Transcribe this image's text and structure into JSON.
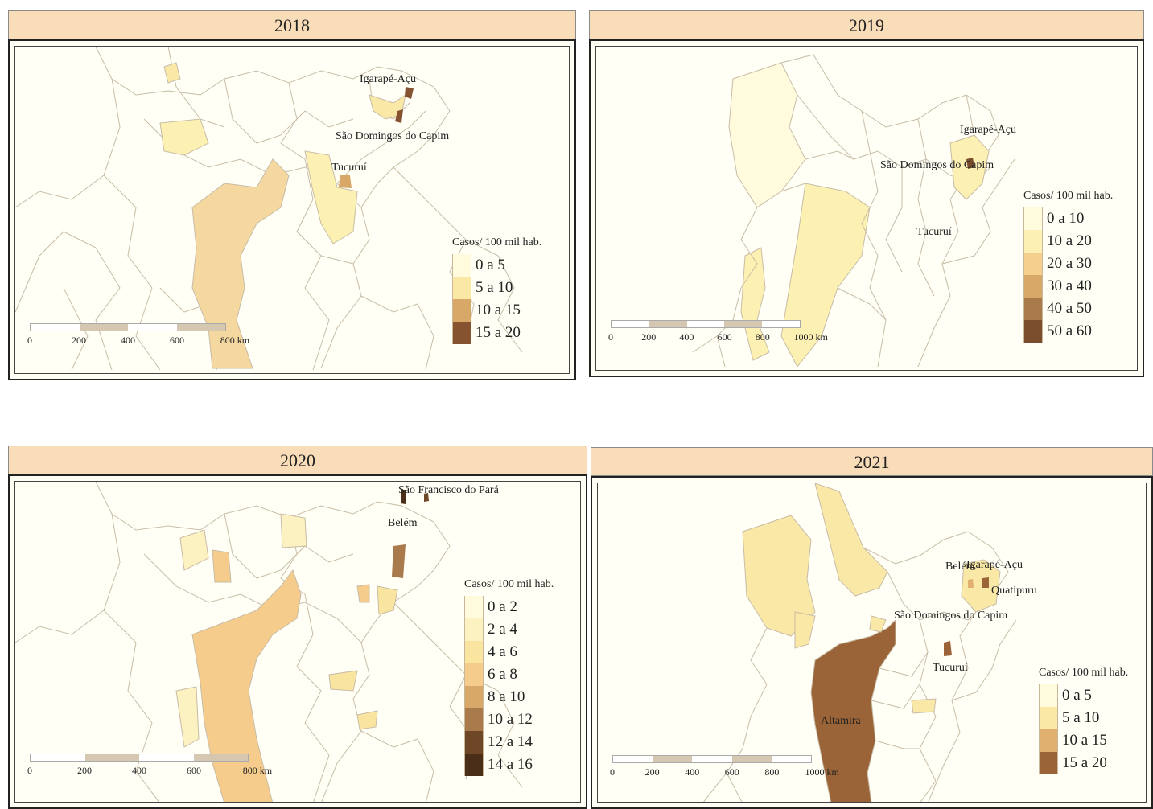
{
  "colors": {
    "header_bg": "#f9ddb8",
    "map_bg": "#fffff6",
    "border": "#c8bca6"
  },
  "panels": [
    {
      "year": "2018",
      "legend": {
        "title": "Casos/ 100 mil hab.",
        "classes": [
          {
            "label": "0 a 5",
            "color": "#fffbdc"
          },
          {
            "label": "5 a 10",
            "color": "#fae8a6"
          },
          {
            "label": "10 a 15",
            "color": "#d8a868"
          },
          {
            "label": "15 a 20",
            "color": "#85532f"
          }
        ]
      },
      "places": [
        "Igarapé-Açu",
        "São Domingos do Capim",
        "Tucuruí"
      ],
      "scale": {
        "ticks": [
          "0",
          "200",
          "400",
          "600",
          "800 km"
        ]
      }
    },
    {
      "year": "2019",
      "legend": {
        "title": "Casos/ 100 mil hab.",
        "classes": [
          {
            "label": "0 a 10",
            "color": "#fffbdc"
          },
          {
            "label": "10 a 20",
            "color": "#fcf0b2"
          },
          {
            "label": "20 a 30",
            "color": "#f5cf8e"
          },
          {
            "label": "30 a 40",
            "color": "#d8a868"
          },
          {
            "label": "40 a 50",
            "color": "#a87a4c"
          },
          {
            "label": "50 a 60",
            "color": "#7a4e2c"
          }
        ]
      },
      "places": [
        "Igarapé-Açu",
        "São Domingos do Capim",
        "Tucuruí"
      ],
      "scale": {
        "ticks": [
          "0",
          "200",
          "400",
          "600",
          "800",
          "1000 km"
        ]
      }
    },
    {
      "year": "2020",
      "legend": {
        "title": "Casos/ 100 mil hab.",
        "classes": [
          {
            "label": "0 a 2",
            "color": "#fffbdc"
          },
          {
            "label": "2 a 4",
            "color": "#fcf1c0"
          },
          {
            "label": "4 a 6",
            "color": "#fae5a0"
          },
          {
            "label": "6 a 8",
            "color": "#f5cc8c"
          },
          {
            "label": "8 a 10",
            "color": "#d8a868"
          },
          {
            "label": "10 a 12",
            "color": "#a87a4c"
          },
          {
            "label": "12 a 14",
            "color": "#6e4727"
          },
          {
            "label": "14 a 16",
            "color": "#4a2e18"
          }
        ]
      },
      "places": [
        "São Francisco do Pará",
        "Belém"
      ],
      "scale": {
        "ticks": [
          "0",
          "200",
          "400",
          "600",
          "800 km"
        ]
      }
    },
    {
      "year": "2021",
      "legend": {
        "title": "Casos/ 100 mil hab.",
        "classes": [
          {
            "label": "0 a 5",
            "color": "#fffbdc"
          },
          {
            "label": "5 a 10",
            "color": "#fae8a6"
          },
          {
            "label": "10 a 15",
            "color": "#e0b070"
          },
          {
            "label": "15 a 20",
            "color": "#9a6438"
          }
        ]
      },
      "places": [
        "Belém",
        "Igarapé-Açu",
        "Quatipuru",
        "São Domingos do Capim",
        "Tucuruí",
        "Altamira"
      ],
      "scale": {
        "ticks": [
          "0",
          "200",
          "400",
          "600",
          "800",
          "1000 km"
        ]
      }
    }
  ]
}
